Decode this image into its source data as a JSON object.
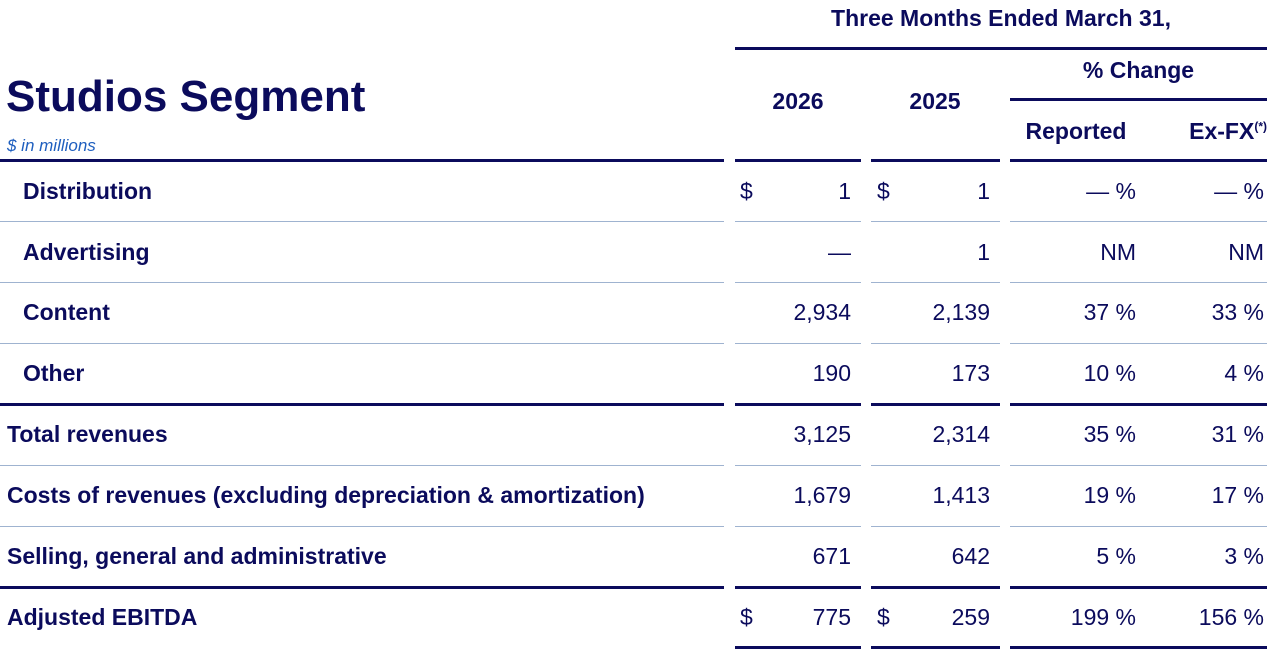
{
  "header": {
    "period": "Three Months Ended March 31,",
    "title": "Studios Segment",
    "subtitle": "$ in millions",
    "col_2026": "2026",
    "col_2025": "2025",
    "pct_change": "% Change",
    "reported": "Reported",
    "exfx": "Ex-FX",
    "exfx_note": "(*)"
  },
  "rows": [
    {
      "label": "Distribution",
      "v2026": "1",
      "v2025": "1",
      "reported": "— %",
      "exfx": "— %",
      "dollar": "$"
    },
    {
      "label": "Advertising",
      "v2026": "—",
      "v2025": "1",
      "reported": "NM",
      "exfx": "NM"
    },
    {
      "label": "Content",
      "v2026": "2,934",
      "v2025": "2,139",
      "reported": "37 %",
      "exfx": "33 %"
    },
    {
      "label": "Other",
      "v2026": "190",
      "v2025": "173",
      "reported": "10 %",
      "exfx": "4 %"
    },
    {
      "label": "Total revenues",
      "v2026": "3,125",
      "v2025": "2,314",
      "reported": "35 %",
      "exfx": "31 %"
    },
    {
      "label": "Costs of revenues (excluding depreciation & amortization)",
      "v2026": "1,679",
      "v2025": "1,413",
      "reported": "19 %",
      "exfx": "17 %"
    },
    {
      "label": "Selling, general and administrative",
      "v2026": "671",
      "v2025": "642",
      "reported": "5 %",
      "exfx": "3 %"
    },
    {
      "label": "Adjusted EBITDA",
      "v2026": "775",
      "v2025": "259",
      "reported": "199 %",
      "exfx": "156 %",
      "dollar": "$"
    }
  ]
}
